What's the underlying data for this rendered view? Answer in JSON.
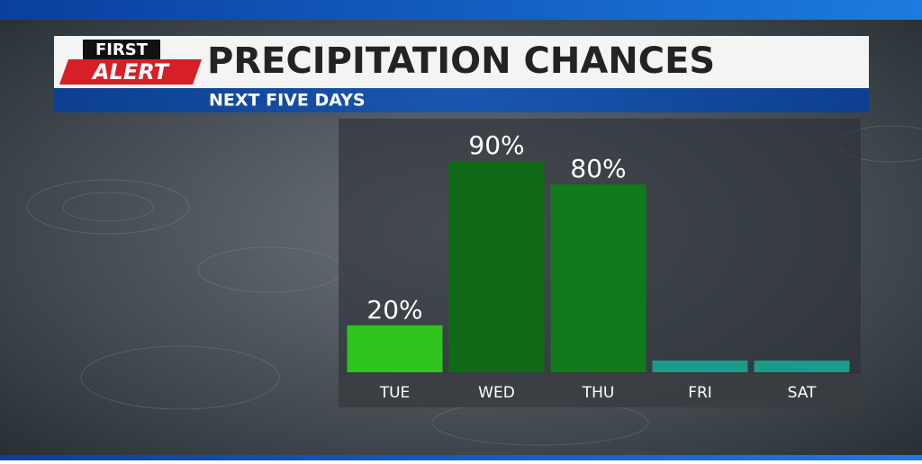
{
  "branding": {
    "line1": "FIRST",
    "line2": "ALERT"
  },
  "chart_data": {
    "type": "bar",
    "title": "PRECIPITATION CHANCES",
    "subtitle": "NEXT FIVE DAYS",
    "categories": [
      "TUE",
      "WED",
      "THU",
      "FRI",
      "SAT"
    ],
    "values": [
      20,
      90,
      80,
      5,
      5
    ],
    "value_labels": [
      "20%",
      "90%",
      "80%",
      null,
      null
    ],
    "colors": [
      "#2fc41e",
      "#0f6a17",
      "#117a1b",
      "#1c9a8a",
      "#1c9a8a"
    ],
    "ylim": [
      0,
      100
    ]
  }
}
